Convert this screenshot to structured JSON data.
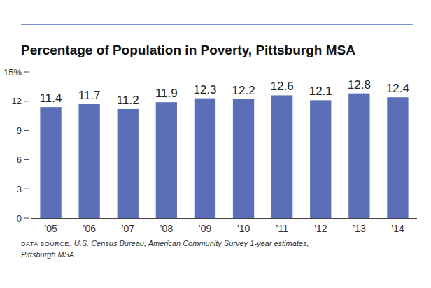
{
  "chart_data": {
    "type": "bar",
    "title": "Percentage of Population in Poverty, Pittsburgh MSA",
    "categories": [
      "’05",
      "’06",
      "’07",
      "’08",
      "’09",
      "’10",
      "’11",
      "’12",
      "’13",
      "’14"
    ],
    "values": [
      11.4,
      11.7,
      11.2,
      11.9,
      12.3,
      12.2,
      12.6,
      12.1,
      12.8,
      12.4
    ],
    "color": "#5a6fb8",
    "ylim": [
      0,
      15
    ],
    "yticks": [
      0,
      3,
      6,
      9,
      12,
      {
        "value": 15,
        "label": "15%"
      }
    ],
    "grid": false,
    "data_labels": true,
    "source_label": "DATA SOURCE:",
    "source": "U.S. Census Bureau, American Community Survey 1-year estimates, Pittsburgh MSA"
  }
}
